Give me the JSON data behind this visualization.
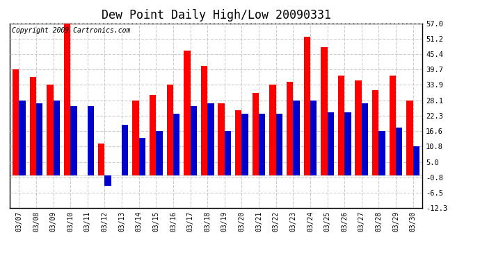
{
  "title": "Dew Point Daily High/Low 20090331",
  "copyright": "Copyright 2009 Cartronics.com",
  "dates": [
    "03/07",
    "03/08",
    "03/09",
    "03/10",
    "03/11",
    "03/12",
    "03/13",
    "03/14",
    "03/15",
    "03/16",
    "03/17",
    "03/18",
    "03/19",
    "03/20",
    "03/21",
    "03/22",
    "03/23",
    "03/24",
    "03/25",
    "03/26",
    "03/27",
    "03/28",
    "03/29",
    "03/30"
  ],
  "highs": [
    39.7,
    37.0,
    33.9,
    57.0,
    0.0,
    12.0,
    0.0,
    28.1,
    30.0,
    33.9,
    46.9,
    41.0,
    27.0,
    24.5,
    31.0,
    33.9,
    35.0,
    52.0,
    48.0,
    37.5,
    35.5,
    32.0,
    37.5,
    28.1
  ],
  "lows": [
    28.1,
    27.0,
    28.1,
    26.0,
    26.0,
    -4.0,
    19.0,
    14.0,
    16.6,
    23.0,
    26.0,
    27.0,
    16.6,
    23.0,
    23.0,
    23.0,
    28.1,
    28.1,
    23.5,
    23.5,
    27.0,
    16.5,
    18.0,
    10.8
  ],
  "high_color": "#ff0000",
  "low_color": "#0000cc",
  "bg_color": "#ffffff",
  "plot_bg_color": "#ffffff",
  "grid_color": "#bbbbbb",
  "yticks": [
    -12.3,
    -6.5,
    -0.8,
    5.0,
    10.8,
    16.6,
    22.3,
    28.1,
    33.9,
    39.7,
    45.4,
    51.2,
    57.0
  ],
  "ylim": [
    -12.3,
    57.0
  ],
  "bar_width": 0.38,
  "title_fontsize": 12,
  "copyright_fontsize": 7
}
